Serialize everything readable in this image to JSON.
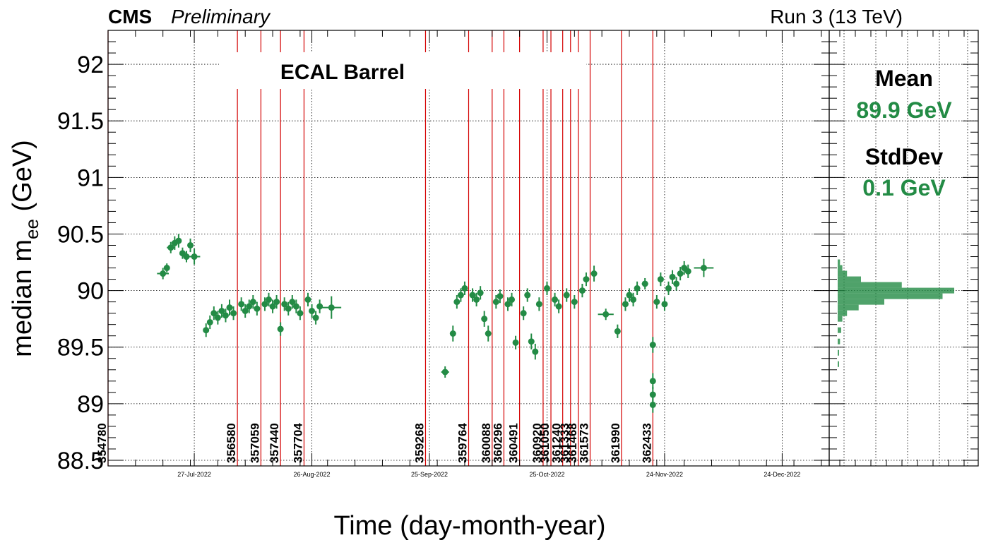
{
  "header": {
    "experiment": "CMS",
    "status": "Preliminary",
    "run_label": "Run 3 (13 TeV)"
  },
  "stats": {
    "mean_label": "Mean",
    "mean_value": "89.9 GeV",
    "std_label": "StdDev",
    "std_value": "0.1 GeV"
  },
  "colors": {
    "series": "#238b45",
    "run_lines": "#d40000",
    "axes": "#000000",
    "grid": "#000000"
  },
  "chart_data": [
    {
      "type": "scatter",
      "title": "ECAL Barrel",
      "xlabel": "Time (day-month-year)",
      "ylabel": "median m_ee (GeV)",
      "ylabel_main": "median m",
      "ylabel_sub": "ee",
      "ylabel_unit": "(GeV)",
      "grid": true,
      "xlim": [
        "2022-07-05",
        "2023-01-05"
      ],
      "ylim": [
        88.45,
        92.3
      ],
      "y_ticks": [
        88.5,
        89,
        89.5,
        90,
        90.5,
        91,
        91.5,
        92
      ],
      "y_tick_labels": [
        "88.5",
        "89",
        "89.5",
        "90",
        "90.5",
        "91",
        "91.5",
        "92"
      ],
      "x_ticks": [
        "2022-07-27",
        "2022-08-26",
        "2022-09-25",
        "2022-10-25",
        "2022-11-24",
        "2022-12-24"
      ],
      "x_tick_labels": [
        "27-Jul-2022",
        "26-Aug-2022",
        "25-Sep-2022",
        "25-Oct-2022",
        "24-Nov-2022",
        "24-Dec-2022"
      ],
      "run_markers": [
        {
          "run": "354780",
          "date": "2022-07-05"
        },
        {
          "run": "356580",
          "date": "2022-08-07"
        },
        {
          "run": "357059",
          "date": "2022-08-13"
        },
        {
          "run": "357440",
          "date": "2022-08-18"
        },
        {
          "run": "357704",
          "date": "2022-08-24"
        },
        {
          "run": "359268",
          "date": "2022-09-24"
        },
        {
          "run": "359764",
          "date": "2022-10-05"
        },
        {
          "run": "360088",
          "date": "2022-10-11"
        },
        {
          "run": "360296",
          "date": "2022-10-14"
        },
        {
          "run": "360491",
          "date": "2022-10-18"
        },
        {
          "run": "360920",
          "date": "2022-10-24"
        },
        {
          "run": "361050",
          "date": "2022-10-26"
        },
        {
          "run": "361240",
          "date": "2022-10-29"
        },
        {
          "run": "361333",
          "date": "2022-10-31"
        },
        {
          "run": "361468",
          "date": "2022-11-02"
        },
        {
          "run": "361573",
          "date": "2022-11-05"
        },
        {
          "run": "361990",
          "date": "2022-11-13"
        },
        {
          "run": "362433",
          "date": "2022-11-21"
        }
      ],
      "series": [
        {
          "points": [
            {
              "x": "2022-07-19",
              "y": 90.15,
              "dx": 1.5,
              "dy": 0.05
            },
            {
              "x": "2022-07-20",
              "y": 90.2,
              "dx": 0.5,
              "dy": 0.04
            },
            {
              "x": "2022-07-21",
              "y": 90.38,
              "dx": 1,
              "dy": 0.05
            },
            {
              "x": "2022-07-22",
              "y": 90.42,
              "dx": 0.5,
              "dy": 0.06
            },
            {
              "x": "2022-07-23",
              "y": 90.44,
              "dx": 0.5,
              "dy": 0.06
            },
            {
              "x": "2022-07-24",
              "y": 90.33,
              "dx": 0.5,
              "dy": 0.05
            },
            {
              "x": "2022-07-25",
              "y": 90.3,
              "dx": 0.5,
              "dy": 0.05
            },
            {
              "x": "2022-07-26",
              "y": 90.4,
              "dx": 0.5,
              "dy": 0.06
            },
            {
              "x": "2022-07-27",
              "y": 90.3,
              "dx": 1.5,
              "dy": 0.07
            },
            {
              "x": "2022-07-30",
              "y": 89.65,
              "dx": 0.3,
              "dy": 0.06
            },
            {
              "x": "2022-07-31",
              "y": 89.72,
              "dx": 0.3,
              "dy": 0.06
            },
            {
              "x": "2022-08-01",
              "y": 89.8,
              "dx": 0.3,
              "dy": 0.06
            },
            {
              "x": "2022-08-02",
              "y": 89.76,
              "dx": 0.3,
              "dy": 0.06
            },
            {
              "x": "2022-08-03",
              "y": 89.82,
              "dx": 0.3,
              "dy": 0.06
            },
            {
              "x": "2022-08-04",
              "y": 89.78,
              "dx": 0.3,
              "dy": 0.06
            },
            {
              "x": "2022-08-05",
              "y": 89.85,
              "dx": 0.3,
              "dy": 0.07
            },
            {
              "x": "2022-08-06",
              "y": 89.8,
              "dx": 0.3,
              "dy": 0.06
            },
            {
              "x": "2022-08-08",
              "y": 89.88,
              "dx": 0.3,
              "dy": 0.06
            },
            {
              "x": "2022-08-09",
              "y": 89.82,
              "dx": 0.3,
              "dy": 0.06
            },
            {
              "x": "2022-08-10",
              "y": 89.86,
              "dx": 0.3,
              "dy": 0.06
            },
            {
              "x": "2022-08-11",
              "y": 89.9,
              "dx": 0.3,
              "dy": 0.06
            },
            {
              "x": "2022-08-12",
              "y": 89.84,
              "dx": 0.3,
              "dy": 0.06
            },
            {
              "x": "2022-08-14",
              "y": 89.88,
              "dx": 0.3,
              "dy": 0.06
            },
            {
              "x": "2022-08-15",
              "y": 89.92,
              "dx": 0.3,
              "dy": 0.06
            },
            {
              "x": "2022-08-16",
              "y": 89.86,
              "dx": 0.3,
              "dy": 0.06
            },
            {
              "x": "2022-08-17",
              "y": 89.9,
              "dx": 0.3,
              "dy": 0.06
            },
            {
              "x": "2022-08-18",
              "y": 89.66,
              "dx": 0.3,
              "dy": 0.06
            },
            {
              "x": "2022-08-19",
              "y": 89.88,
              "dx": 0.3,
              "dy": 0.06
            },
            {
              "x": "2022-08-20",
              "y": 89.84,
              "dx": 0.3,
              "dy": 0.06
            },
            {
              "x": "2022-08-21",
              "y": 89.9,
              "dx": 0.3,
              "dy": 0.06
            },
            {
              "x": "2022-08-22",
              "y": 89.86,
              "dx": 0.3,
              "dy": 0.06
            },
            {
              "x": "2022-08-23",
              "y": 89.8,
              "dx": 0.3,
              "dy": 0.06
            },
            {
              "x": "2022-08-25",
              "y": 89.92,
              "dx": 0.3,
              "dy": 0.06
            },
            {
              "x": "2022-08-26",
              "y": 89.82,
              "dx": 0.3,
              "dy": 0.06
            },
            {
              "x": "2022-08-27",
              "y": 89.76,
              "dx": 0.3,
              "dy": 0.06
            },
            {
              "x": "2022-08-28",
              "y": 89.86,
              "dx": 0.3,
              "dy": 0.06
            },
            {
              "x": "2022-08-31",
              "y": 89.85,
              "dx": 2.5,
              "dy": 0.1
            },
            {
              "x": "2022-09-29",
              "y": 89.28,
              "dx": 1,
              "dy": 0.05
            },
            {
              "x": "2022-10-01",
              "y": 89.62,
              "dx": 0.3,
              "dy": 0.07
            },
            {
              "x": "2022-10-02",
              "y": 89.9,
              "dx": 0.3,
              "dy": 0.06
            },
            {
              "x": "2022-10-03",
              "y": 89.96,
              "dx": 0.3,
              "dy": 0.06
            },
            {
              "x": "2022-10-04",
              "y": 90.02,
              "dx": 0.3,
              "dy": 0.06
            },
            {
              "x": "2022-10-06",
              "y": 89.96,
              "dx": 0.3,
              "dy": 0.06
            },
            {
              "x": "2022-10-07",
              "y": 89.92,
              "dx": 0.3,
              "dy": 0.06
            },
            {
              "x": "2022-10-08",
              "y": 89.98,
              "dx": 0.3,
              "dy": 0.06
            },
            {
              "x": "2022-10-09",
              "y": 89.75,
              "dx": 0.3,
              "dy": 0.07
            },
            {
              "x": "2022-10-10",
              "y": 89.62,
              "dx": 0.3,
              "dy": 0.07
            },
            {
              "x": "2022-10-12",
              "y": 89.9,
              "dx": 0.3,
              "dy": 0.06
            },
            {
              "x": "2022-10-13",
              "y": 89.95,
              "dx": 0.3,
              "dy": 0.06
            },
            {
              "x": "2022-10-15",
              "y": 89.88,
              "dx": 0.3,
              "dy": 0.06
            },
            {
              "x": "2022-10-16",
              "y": 89.92,
              "dx": 0.3,
              "dy": 0.06
            },
            {
              "x": "2022-10-17",
              "y": 89.54,
              "dx": 0.3,
              "dy": 0.06
            },
            {
              "x": "2022-10-19",
              "y": 89.8,
              "dx": 0.5,
              "dy": 0.06
            },
            {
              "x": "2022-10-20",
              "y": 89.96,
              "dx": 0.3,
              "dy": 0.06
            },
            {
              "x": "2022-10-21",
              "y": 89.55,
              "dx": 0.3,
              "dy": 0.07
            },
            {
              "x": "2022-10-22",
              "y": 89.46,
              "dx": 0.3,
              "dy": 0.07
            },
            {
              "x": "2022-10-23",
              "y": 89.88,
              "dx": 0.3,
              "dy": 0.06
            },
            {
              "x": "2022-10-25",
              "y": 90.02,
              "dx": 0.3,
              "dy": 0.06
            },
            {
              "x": "2022-10-27",
              "y": 89.92,
              "dx": 0.3,
              "dy": 0.06
            },
            {
              "x": "2022-10-28",
              "y": 89.86,
              "dx": 0.3,
              "dy": 0.06
            },
            {
              "x": "2022-10-30",
              "y": 89.96,
              "dx": 0.3,
              "dy": 0.06
            },
            {
              "x": "2022-11-01",
              "y": 89.9,
              "dx": 0.3,
              "dy": 0.06
            },
            {
              "x": "2022-11-03",
              "y": 90.0,
              "dx": 0.3,
              "dy": 0.06
            },
            {
              "x": "2022-11-04",
              "y": 90.1,
              "dx": 0.3,
              "dy": 0.06
            },
            {
              "x": "2022-11-06",
              "y": 90.15,
              "dx": 0.3,
              "dy": 0.07
            },
            {
              "x": "2022-11-09",
              "y": 89.79,
              "dx": 2,
              "dy": 0.05
            },
            {
              "x": "2022-11-12",
              "y": 89.64,
              "dx": 0.3,
              "dy": 0.06
            },
            {
              "x": "2022-11-14",
              "y": 89.88,
              "dx": 0.3,
              "dy": 0.06
            },
            {
              "x": "2022-11-15",
              "y": 89.96,
              "dx": 0.3,
              "dy": 0.06
            },
            {
              "x": "2022-11-16",
              "y": 89.92,
              "dx": 0.3,
              "dy": 0.06
            },
            {
              "x": "2022-11-17",
              "y": 90.02,
              "dx": 0.3,
              "dy": 0.06
            },
            {
              "x": "2022-11-19",
              "y": 90.06,
              "dx": 0.8,
              "dy": 0.05
            },
            {
              "x": "2022-11-21",
              "y": 89.52,
              "dx": 0.3,
              "dy": 0.07
            },
            {
              "x": "2022-11-21",
              "y": 89.2,
              "dx": 0.3,
              "dy": 0.07
            },
            {
              "x": "2022-11-21",
              "y": 89.08,
              "dx": 0.3,
              "dy": 0.07
            },
            {
              "x": "2022-11-21",
              "y": 88.99,
              "dx": 0.3,
              "dy": 0.07
            },
            {
              "x": "2022-11-22",
              "y": 89.9,
              "dx": 0.3,
              "dy": 0.06
            },
            {
              "x": "2022-11-23",
              "y": 90.1,
              "dx": 0.3,
              "dy": 0.06
            },
            {
              "x": "2022-11-24",
              "y": 89.88,
              "dx": 0.3,
              "dy": 0.06
            },
            {
              "x": "2022-11-25",
              "y": 90.02,
              "dx": 0.3,
              "dy": 0.06
            },
            {
              "x": "2022-11-26",
              "y": 90.12,
              "dx": 0.3,
              "dy": 0.06
            },
            {
              "x": "2022-11-27",
              "y": 90.06,
              "dx": 0.3,
              "dy": 0.06
            },
            {
              "x": "2022-11-28",
              "y": 90.15,
              "dx": 0.3,
              "dy": 0.06
            },
            {
              "x": "2022-11-29",
              "y": 90.2,
              "dx": 0.3,
              "dy": 0.06
            },
            {
              "x": "2022-11-30",
              "y": 90.17,
              "dx": 0.3,
              "dy": 0.06
            },
            {
              "x": "2022-12-04",
              "y": 90.2,
              "dx": 2.5,
              "dy": 0.08
            }
          ]
        }
      ]
    },
    {
      "type": "histogram",
      "orientation": "horizontal",
      "bins": [
        {
          "y": 89.35,
          "count": 1
        },
        {
          "y": 89.45,
          "count": 1
        },
        {
          "y": 89.55,
          "count": 2
        },
        {
          "y": 89.65,
          "count": 3
        },
        {
          "y": 89.75,
          "count": 4
        },
        {
          "y": 89.8,
          "count": 8
        },
        {
          "y": 89.85,
          "count": 18
        },
        {
          "y": 89.9,
          "count": 40
        },
        {
          "y": 89.95,
          "count": 90
        },
        {
          "y": 90.0,
          "count": 100
        },
        {
          "y": 90.05,
          "count": 55
        },
        {
          "y": 90.1,
          "count": 20
        },
        {
          "y": 90.15,
          "count": 8
        },
        {
          "y": 90.2,
          "count": 4
        },
        {
          "y": 90.25,
          "count": 2
        }
      ]
    }
  ]
}
